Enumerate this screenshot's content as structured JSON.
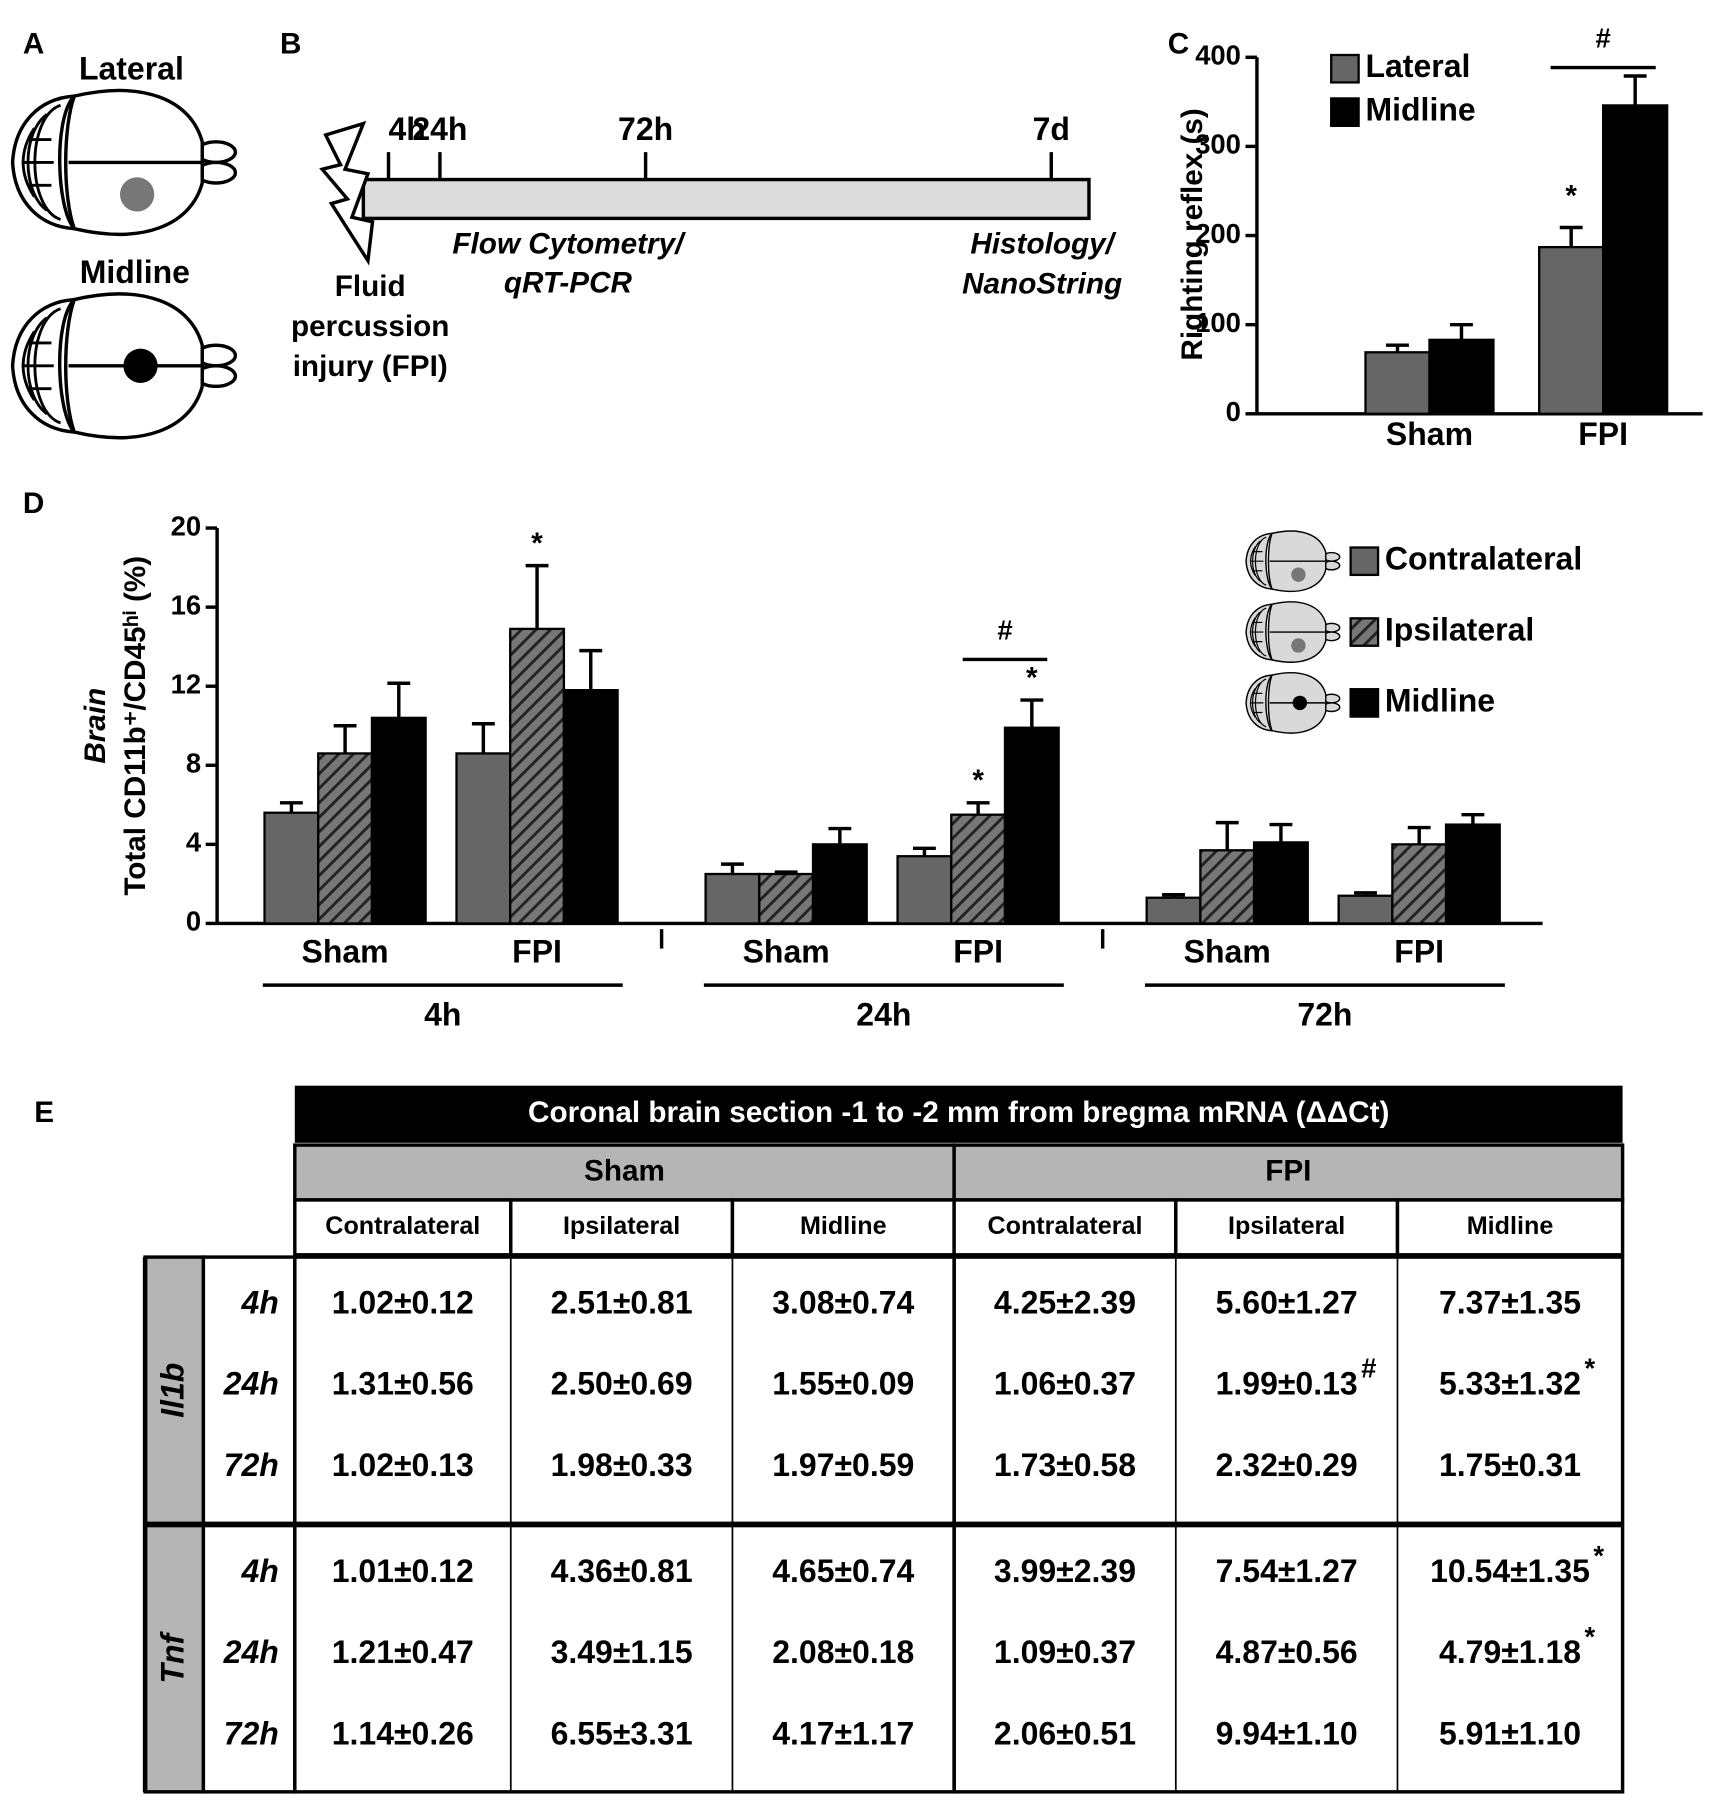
{
  "panel_labels": [
    "A",
    "B",
    "C",
    "D",
    "E"
  ],
  "panel_a": {
    "labels": [
      "Lateral",
      "Midline"
    ]
  },
  "panel_b": {
    "timepoints": [
      "4h",
      "24h",
      "72h",
      "7d"
    ],
    "injury": [
      "Fluid",
      "percussion",
      "injury (FPI)"
    ],
    "early_assays": [
      "Flow Cytometry/",
      "qRT-PCR"
    ],
    "late_assays": [
      "Histology/",
      "NanoString"
    ]
  },
  "chart_data": [
    {
      "type": "bar",
      "ylabel": "Righting reflex (s)",
      "categories": [
        "Sham",
        "FPI"
      ],
      "series": [
        {
          "name": "Lateral",
          "color": "#666666",
          "values": [
            69,
            187
          ],
          "errors": [
            8,
            22
          ]
        },
        {
          "name": "Midline",
          "color": "#000000",
          "values": [
            83,
            346
          ],
          "errors": [
            17,
            33
          ]
        }
      ],
      "ylim": [
        0,
        400
      ],
      "yticks": [
        0,
        100,
        200,
        300,
        400
      ],
      "legend": "upper left",
      "annotations": [
        "*",
        "#"
      ]
    },
    {
      "type": "bar",
      "ylabel_region": "Brain",
      "ylabel": "Total CD11b⁺/CD45ʰⁱ (%)",
      "categories": [
        "Sham",
        "FPI",
        "Sham",
        "FPI",
        "Sham",
        "FPI"
      ],
      "groups": [
        "4h",
        "24h",
        "72h"
      ],
      "series": [
        {
          "name": "Contralateral",
          "color": "#666666",
          "hatch": false,
          "values": [
            5.6,
            8.6,
            2.5,
            3.4,
            1.3,
            1.4
          ],
          "errors": [
            0.5,
            1.5,
            0.5,
            0.4,
            0.15,
            0.15
          ]
        },
        {
          "name": "Ipsilateral",
          "color": "#777777",
          "hatch": true,
          "values": [
            8.6,
            14.9,
            2.5,
            5.5,
            3.7,
            4.0
          ],
          "errors": [
            1.4,
            3.2,
            0.1,
            0.6,
            1.4,
            0.85
          ]
        },
        {
          "name": "Midline",
          "color": "#000000",
          "hatch": false,
          "values": [
            10.4,
            11.8,
            4.0,
            9.9,
            4.1,
            5.0
          ],
          "errors": [
            1.75,
            2.0,
            0.8,
            1.4,
            0.9,
            0.5
          ]
        }
      ],
      "ylim": [
        0,
        20
      ],
      "yticks": [
        0,
        4,
        8,
        12,
        16,
        20
      ],
      "legend": "upper right",
      "annotations": [
        "*",
        "*",
        "*",
        "#"
      ]
    }
  ],
  "table": {
    "title": "Coronal brain section -1 to -2 mm from bregma mRNA (ΔΔCt)",
    "groups": [
      "Sham",
      "FPI"
    ],
    "columns": [
      "Contralateral",
      "Ipsilateral",
      "Midline",
      "Contralateral",
      "Ipsilateral",
      "Midline"
    ],
    "blocks": [
      {
        "gene": "Il1b",
        "rows": [
          {
            "time": "4h",
            "cells": [
              "1.02±0.12",
              "2.51±0.81",
              "3.08±0.74",
              "4.25±2.39",
              "5.60±1.27",
              "7.37±1.35"
            ]
          },
          {
            "time": "24h",
            "cells": [
              "1.31±0.56",
              "2.50±0.69",
              "1.55±0.09",
              "1.06±0.37",
              {
                "value": "1.99±0.13",
                "sup": "#"
              },
              {
                "value": "5.33±1.32",
                "sup": "*"
              }
            ]
          },
          {
            "time": "72h",
            "cells": [
              "1.02±0.13",
              "1.98±0.33",
              "1.97±0.59",
              "1.73±0.58",
              "2.32±0.29",
              "1.75±0.31"
            ]
          }
        ]
      },
      {
        "gene": "Tnf",
        "rows": [
          {
            "time": "4h",
            "cells": [
              "1.01±0.12",
              "4.36±0.81",
              "4.65±0.74",
              "3.99±2.39",
              "7.54±1.27",
              {
                "value": "10.54±1.35",
                "sup": "*"
              }
            ]
          },
          {
            "time": "24h",
            "cells": [
              "1.21±0.47",
              "3.49±1.15",
              "2.08±0.18",
              "1.09±0.37",
              "4.87±0.56",
              {
                "value": "4.79±1.18",
                "sup": "*"
              }
            ]
          },
          {
            "time": "72h",
            "cells": [
              "1.14±0.26",
              "6.55±3.31",
              "4.17±1.17",
              "2.06±0.51",
              "9.94±1.10",
              "5.91±1.10"
            ]
          }
        ]
      }
    ]
  }
}
